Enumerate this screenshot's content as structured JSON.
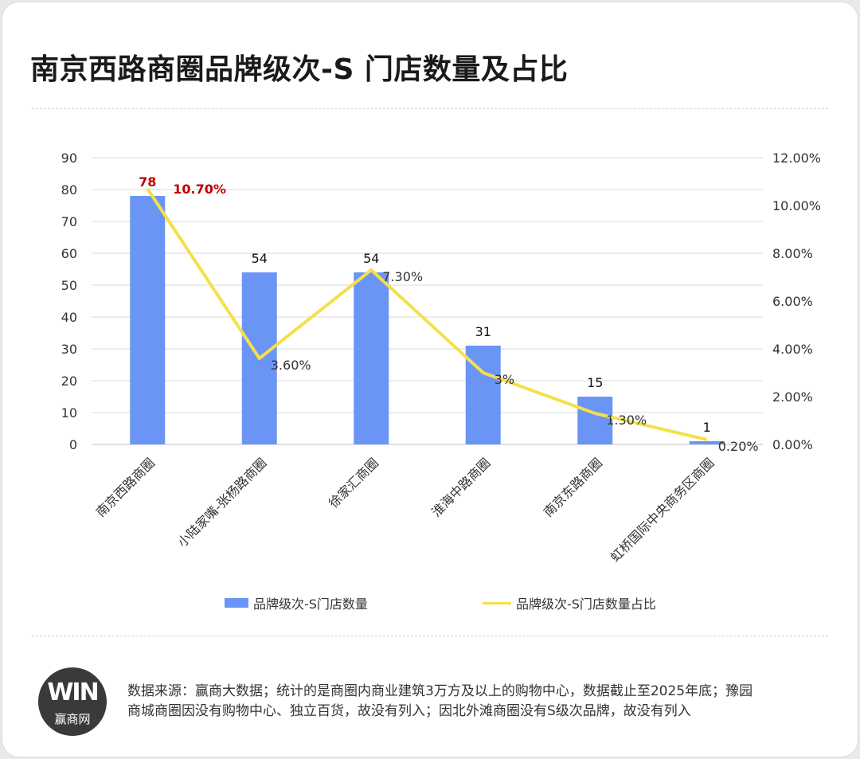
{
  "title": "南京西路商圈品牌级次-S 门店数量及占比",
  "legend": {
    "bar": "品牌级次-S门店数量",
    "line": "品牌级次-S门店数量占比"
  },
  "source_text": "数据来源：赢商大数据；统计的是商圈内商业建筑3万方及以上的购物中心，数据截止至2025年底；豫园商城商圈因没有购物中心、独立百货，故没有列入；因北外滩商圈没有S级次品牌，故没有列入",
  "logo": {
    "mark": "WIN",
    "name": "赢商网"
  },
  "colors": {
    "bar": "#6b95f5",
    "line": "#f5df4d",
    "highlight": "#c00000"
  },
  "chart_data": {
    "type": "bar",
    "categories": [
      "南京西路商圈",
      "小陆家嘴-张杨路商圈",
      "徐家汇商圈",
      "淮海中路商圈",
      "南京东路商圈",
      "虹桥国际中央商务区商圈"
    ],
    "series": [
      {
        "name": "品牌级次-S门店数量",
        "type": "bar",
        "axis": "left",
        "values": [
          78,
          54,
          54,
          31,
          15,
          1
        ],
        "labels": [
          "78",
          "54",
          "54",
          "31",
          "15",
          "1"
        ]
      },
      {
        "name": "品牌级次-S门店数量占比",
        "type": "line",
        "axis": "right",
        "values": [
          10.7,
          3.6,
          7.3,
          3.0,
          1.3,
          0.2
        ],
        "labels": [
          "10.70%",
          "3.60%",
          "7.30%",
          "3%",
          "1.30%",
          "0.20%"
        ]
      }
    ],
    "y_left": {
      "min": 0,
      "max": 90,
      "ticks": [
        "0",
        "10",
        "20",
        "30",
        "40",
        "50",
        "60",
        "70",
        "80",
        "90"
      ]
    },
    "y_right": {
      "min": 0,
      "max": 12,
      "ticks": [
        "0.00%",
        "2.00%",
        "4.00%",
        "6.00%",
        "8.00%",
        "10.00%",
        "12.00%"
      ]
    },
    "highlight_index": 0,
    "grid": true,
    "legend_position": "bottom"
  }
}
